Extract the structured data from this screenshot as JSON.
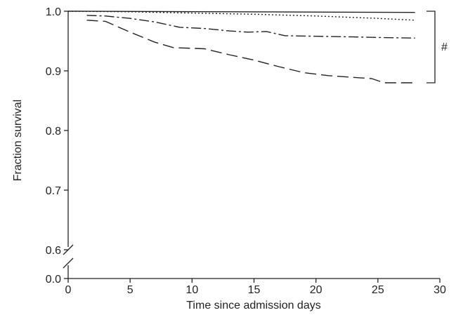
{
  "chart_data": {
    "type": "line",
    "title": "",
    "xlabel": "Time since admission days",
    "ylabel": "Fraction survival",
    "xlim": [
      0,
      30
    ],
    "ylim_upper": [
      0.6,
      1.0
    ],
    "ylim_lower": [
      0.0,
      0.0
    ],
    "y_axis_break": true,
    "grid": false,
    "legend": "none",
    "x_ticks": [
      "0",
      "5",
      "10",
      "15",
      "20",
      "25",
      "30"
    ],
    "y_ticks": [
      "1.0",
      "0.9",
      "0.8",
      "0.7",
      "0.6",
      "0.0"
    ],
    "annotations": [
      {
        "text": "#",
        "bracket_y": [
          0.88,
          1.0
        ],
        "at_x": 29.5
      }
    ],
    "series": [
      {
        "style": "solid",
        "color": "#222222",
        "x": [
          0,
          28
        ],
        "y": [
          1.0,
          0.998
        ]
      },
      {
        "style": "dotted",
        "color": "#222222",
        "x": [
          0,
          5,
          10,
          15,
          20,
          25,
          28
        ],
        "y": [
          1.0,
          0.999,
          0.997,
          0.995,
          0.992,
          0.988,
          0.985
        ]
      },
      {
        "style": "dash-dot",
        "color": "#222222",
        "x": [
          1.5,
          3,
          5,
          7,
          9,
          11,
          13,
          14.5,
          16,
          17.5,
          20,
          23,
          25,
          28
        ],
        "y": [
          0.993,
          0.992,
          0.988,
          0.982,
          0.973,
          0.971,
          0.967,
          0.965,
          0.966,
          0.959,
          0.958,
          0.957,
          0.956,
          0.955
        ]
      },
      {
        "style": "long-dash",
        "color": "#222222",
        "x": [
          1.5,
          3,
          5,
          7,
          8.5,
          11,
          13,
          15,
          17,
          19,
          21,
          23,
          24.5,
          25.5,
          28
        ],
        "y": [
          0.985,
          0.983,
          0.965,
          0.948,
          0.939,
          0.937,
          0.927,
          0.918,
          0.907,
          0.897,
          0.892,
          0.889,
          0.887,
          0.88,
          0.88
        ]
      }
    ]
  }
}
